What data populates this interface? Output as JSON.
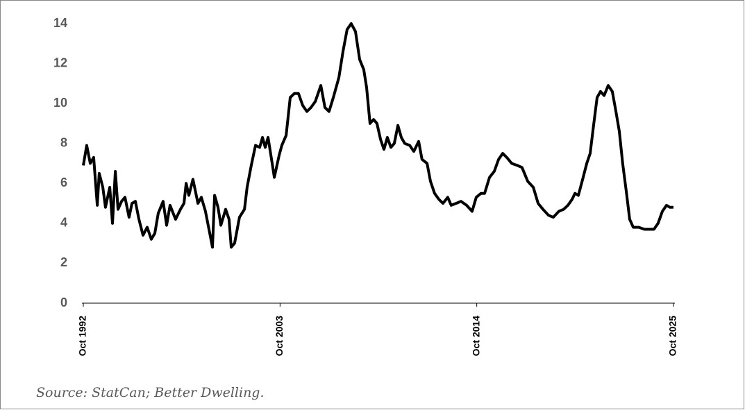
{
  "chart_data": {
    "type": "line",
    "source": "Source: StatCan; Better Dwelling.",
    "xlim": [
      1992.75,
      2025.75
    ],
    "xticks": [
      {
        "value": 1992.75,
        "label": "Oct 1992"
      },
      {
        "value": 2003.75,
        "label": "Oct 2003"
      },
      {
        "value": 2014.75,
        "label": "Oct 2014"
      },
      {
        "value": 2025.75,
        "label": "Oct 2025"
      }
    ],
    "ylim": [
      0,
      14
    ],
    "yticks": [
      0,
      2,
      4,
      6,
      8,
      10,
      12,
      14
    ],
    "grid": false,
    "series": [
      {
        "color": "#000000",
        "x": [
          1992.75,
          1992.94,
          1993.14,
          1993.33,
          1993.53,
          1993.64,
          1993.84,
          1993.99,
          1994.23,
          1994.38,
          1994.54,
          1994.69,
          1994.89,
          1995.08,
          1995.31,
          1995.47,
          1995.66,
          1995.86,
          1996.09,
          1996.32,
          1996.55,
          1996.75,
          1996.94,
          1997.21,
          1997.41,
          1997.6,
          1997.91,
          1998.18,
          1998.38,
          1998.5,
          1998.65,
          1998.88,
          1999.16,
          1999.35,
          1999.58,
          1999.82,
          1999.97,
          2000.09,
          2000.28,
          2000.44,
          2000.71,
          2000.9,
          2001.02,
          2001.21,
          2001.48,
          2001.76,
          2001.91,
          2002.14,
          2002.38,
          2002.61,
          2002.77,
          2002.92,
          2003.08,
          2003.31,
          2003.43,
          2003.7,
          2003.85,
          2004.09,
          2004.32,
          2004.55,
          2004.78,
          2005.02,
          2005.25,
          2005.48,
          2005.72,
          2006.03,
          2006.26,
          2006.49,
          2006.73,
          2007.04,
          2007.27,
          2007.5,
          2007.73,
          2007.97,
          2008.2,
          2008.43,
          2008.59,
          2008.78,
          2008.98,
          2009.17,
          2009.37,
          2009.56,
          2009.75,
          2009.95,
          2010.14,
          2010.34,
          2010.53,
          2010.72,
          2011.0,
          2011.23,
          2011.5,
          2011.69,
          2011.97,
          2012.16,
          2012.39,
          2012.63,
          2012.86,
          2013.13,
          2013.32,
          2013.6,
          2013.87,
          2014.18,
          2014.49,
          2014.72,
          2014.99,
          2015.19,
          2015.46,
          2015.73,
          2015.97,
          2016.2,
          2016.43,
          2016.7,
          2017.01,
          2017.28,
          2017.6,
          2017.91,
          2018.18,
          2018.45,
          2018.76,
          2019.03,
          2019.34,
          2019.61,
          2019.85,
          2020.08,
          2020.24,
          2020.43,
          2020.7,
          2020.9,
          2021.09,
          2021.28,
          2021.48,
          2021.67,
          2021.87,
          2022.1,
          2022.33,
          2022.53,
          2022.72,
          2022.91,
          2023.11,
          2023.3,
          2023.5,
          2023.81,
          2024.12,
          2024.39,
          2024.66,
          2024.89,
          2025.13,
          2025.36,
          2025.55,
          2025.75
        ],
        "values": [
          6.9,
          7.9,
          7.0,
          7.3,
          4.9,
          6.5,
          5.8,
          4.8,
          5.8,
          4.0,
          6.6,
          4.7,
          5.1,
          5.3,
          4.3,
          5.0,
          5.1,
          4.2,
          3.4,
          3.8,
          3.2,
          3.5,
          4.5,
          5.1,
          3.9,
          4.9,
          4.2,
          4.7,
          5.0,
          6.0,
          5.4,
          6.2,
          5.0,
          5.3,
          4.6,
          3.5,
          2.8,
          5.4,
          4.8,
          3.9,
          4.7,
          4.2,
          2.8,
          3.0,
          4.3,
          4.7,
          5.8,
          6.9,
          7.9,
          7.8,
          8.3,
          7.8,
          8.3,
          7.0,
          6.3,
          7.4,
          7.9,
          8.4,
          10.3,
          10.5,
          10.5,
          9.9,
          9.6,
          9.8,
          10.1,
          10.9,
          9.8,
          9.6,
          10.3,
          11.3,
          12.6,
          13.7,
          14.0,
          13.6,
          12.2,
          11.7,
          10.8,
          9.0,
          9.2,
          9.0,
          8.2,
          7.7,
          8.3,
          7.8,
          8.0,
          8.9,
          8.3,
          8.0,
          7.9,
          7.6,
          8.1,
          7.2,
          7.0,
          6.1,
          5.5,
          5.2,
          5.0,
          5.3,
          4.9,
          5.0,
          5.1,
          4.9,
          4.6,
          5.3,
          5.5,
          5.5,
          6.3,
          6.6,
          7.2,
          7.5,
          7.3,
          7.0,
          6.9,
          6.8,
          6.1,
          5.8,
          5.0,
          4.7,
          4.4,
          4.3,
          4.6,
          4.7,
          4.9,
          5.2,
          5.5,
          5.4,
          6.3,
          7.0,
          7.5,
          8.9,
          10.3,
          10.6,
          10.4,
          10.9,
          10.6,
          9.6,
          8.6,
          7.0,
          5.6,
          4.2,
          3.8,
          3.8,
          3.7,
          3.7,
          3.7,
          4.0,
          4.6,
          4.9,
          4.8,
          4.8
        ]
      }
    ]
  }
}
